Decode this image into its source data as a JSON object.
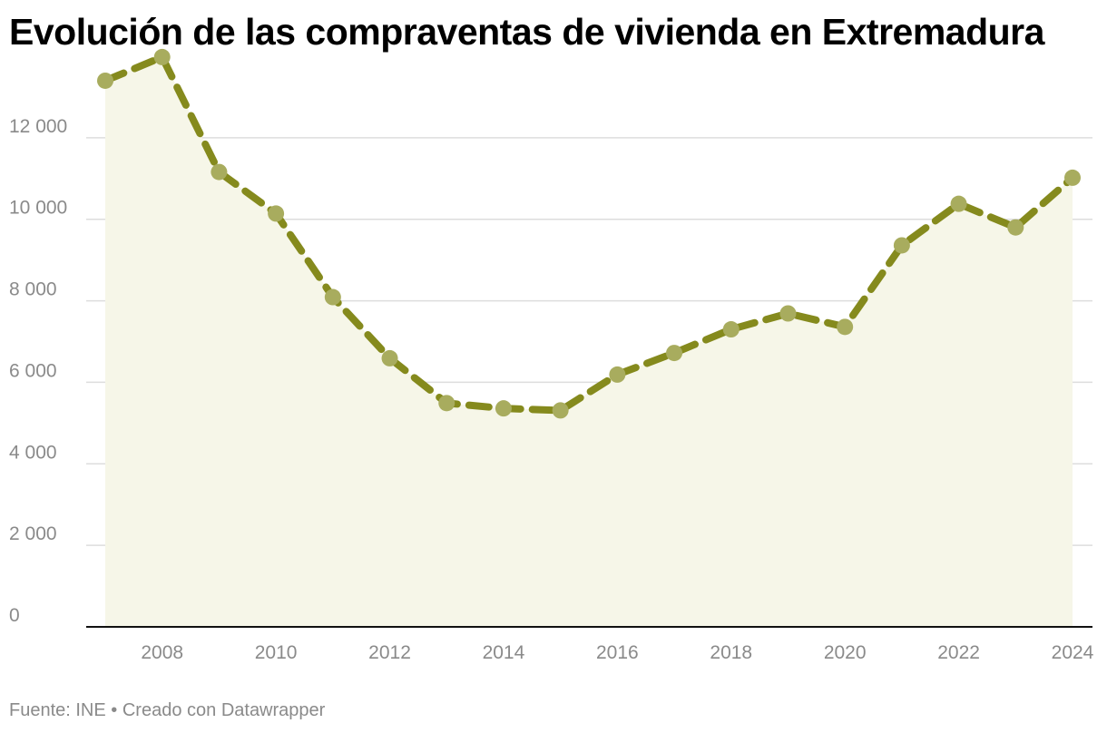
{
  "title": "Evolución de las compraventas de vivienda en Extremadura",
  "footer": {
    "source": "Fuente: INE",
    "separator": "•",
    "credit": "Creado con Datawrapper"
  },
  "colors": {
    "line": "#858a1d",
    "marker": "#a8ac5e",
    "area": "#f6f6e8",
    "grid": "#dddddd",
    "axis": "#111111",
    "tick_text": "#8a8a8a"
  },
  "chart_data": {
    "type": "area",
    "title": "Evolución de las compraventas de vivienda en Extremadura",
    "xlabel": "",
    "ylabel": "",
    "x": [
      2007,
      2008,
      2009,
      2010,
      2011,
      2012,
      2013,
      2014,
      2015,
      2016,
      2017,
      2018,
      2019,
      2020,
      2021,
      2022,
      2023,
      2024
    ],
    "values": [
      13400,
      13980,
      11160,
      10140,
      8090,
      6590,
      5490,
      5360,
      5310,
      6190,
      6720,
      7300,
      7690,
      7360,
      9360,
      10380,
      9800,
      11020
    ],
    "xlim": [
      2007,
      2024
    ],
    "ylim": [
      0,
      14000
    ],
    "y_ticks": [
      0,
      2000,
      4000,
      6000,
      8000,
      10000,
      12000
    ],
    "y_tick_labels": [
      "0",
      "2 000",
      "4 000",
      "6 000",
      "8 000",
      "10 000",
      "12 000"
    ],
    "x_ticks": [
      2008,
      2010,
      2012,
      2014,
      2016,
      2018,
      2020,
      2022,
      2024
    ],
    "x_tick_labels": [
      "2008",
      "2010",
      "2012",
      "2014",
      "2016",
      "2018",
      "2020",
      "2022",
      "2024"
    ],
    "line_style": "dashed",
    "markers": true,
    "grid": true,
    "legend": "none"
  }
}
